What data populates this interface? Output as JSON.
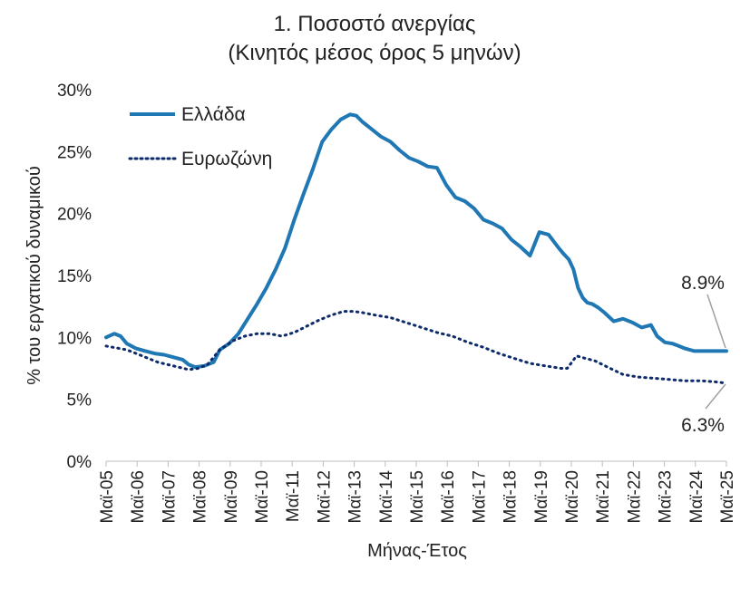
{
  "chart_data": {
    "type": "line",
    "title": [
      "1. Ποσοστό ανεργίας",
      "(Κινητός μέσος όρος 5 μηνών)"
    ],
    "xlabel": "Μήνας-Έτος",
    "ylabel": "% του εργατικού δυναμικού",
    "ylim": [
      0,
      30
    ],
    "yticks": [
      0,
      5,
      10,
      15,
      20,
      25,
      30
    ],
    "ytick_labels": [
      "0%",
      "5%",
      "10%",
      "15%",
      "20%",
      "25%",
      "30%"
    ],
    "xlim": [
      2005.333,
      2025.333
    ],
    "categories": [
      "Μαϊ-05",
      "Μαϊ-06",
      "Μαϊ-07",
      "Μαϊ-08",
      "Μαϊ-09",
      "Μαϊ-10",
      "Μαϊ-11",
      "Μαϊ-12",
      "Μαϊ-13",
      "Μαϊ-14",
      "Μαϊ-15",
      "Μαϊ-16",
      "Μαϊ-17",
      "Μαϊ-18",
      "Μαϊ-19",
      "Μαϊ-20",
      "Μαϊ-21",
      "Μαϊ-22",
      "Μαϊ-23",
      "Μαϊ-24",
      "Μαϊ-25"
    ],
    "legend": {
      "placement": "top-left"
    },
    "grid": false,
    "series": [
      {
        "name": "Ελλάδα",
        "color": "#1f77b4",
        "style": "solid",
        "x": [
          2005.333,
          2005.6,
          2005.8,
          2006.0,
          2006.3,
          2006.6,
          2006.9,
          2007.2,
          2007.5,
          2007.8,
          2008.0,
          2008.2,
          2008.5,
          2008.8,
          2009.0,
          2009.3,
          2009.6,
          2009.9,
          2010.2,
          2010.5,
          2010.8,
          2011.1,
          2011.4,
          2011.7,
          2012.0,
          2012.3,
          2012.6,
          2012.9,
          2013.2,
          2013.4,
          2013.6,
          2013.9,
          2014.2,
          2014.5,
          2014.8,
          2015.1,
          2015.4,
          2015.7,
          2016.0,
          2016.3,
          2016.6,
          2016.9,
          2017.2,
          2017.5,
          2017.8,
          2018.1,
          2018.4,
          2018.7,
          2019.0,
          2019.3,
          2019.6,
          2019.9,
          2020.1,
          2020.25,
          2020.4,
          2020.55,
          2020.7,
          2020.85,
          2021.0,
          2021.2,
          2021.4,
          2021.7,
          2022.0,
          2022.3,
          2022.6,
          2022.9,
          2023.1,
          2023.35,
          2023.6,
          2023.8,
          2024.0,
          2024.3,
          2024.6,
          2024.9,
          2025.1,
          2025.333
        ],
        "y": [
          10.0,
          10.3,
          10.1,
          9.5,
          9.1,
          8.9,
          8.7,
          8.6,
          8.4,
          8.2,
          7.8,
          7.6,
          7.7,
          8.0,
          9.0,
          9.5,
          10.3,
          11.5,
          12.7,
          14.0,
          15.5,
          17.2,
          19.5,
          21.6,
          23.6,
          25.8,
          26.8,
          27.6,
          28.0,
          27.9,
          27.4,
          26.8,
          26.2,
          25.8,
          25.1,
          24.5,
          24.2,
          23.8,
          23.7,
          22.3,
          21.3,
          21.0,
          20.4,
          19.5,
          19.2,
          18.8,
          17.9,
          17.3,
          16.6,
          18.5,
          18.3,
          17.3,
          16.7,
          16.3,
          15.5,
          14.0,
          13.2,
          12.8,
          12.7,
          12.4,
          12.0,
          11.3,
          11.5,
          11.2,
          10.8,
          11.0,
          10.1,
          9.6,
          9.5,
          9.3,
          9.1,
          8.9,
          8.9,
          8.9,
          8.9,
          8.9
        ],
        "end_label": "8.9%"
      },
      {
        "name": "Ευρωζώνη",
        "color": "#0d2a6b",
        "style": "dotted",
        "x": [
          2005.333,
          2006.0,
          2006.5,
          2007.0,
          2007.5,
          2008.0,
          2008.3,
          2008.6,
          2009.0,
          2009.4,
          2009.8,
          2010.2,
          2010.6,
          2011.0,
          2011.4,
          2011.8,
          2012.2,
          2012.6,
          2013.0,
          2013.3,
          2013.6,
          2014.0,
          2014.5,
          2015.0,
          2015.5,
          2016.0,
          2016.5,
          2017.0,
          2017.5,
          2018.0,
          2018.5,
          2019.0,
          2019.5,
          2020.0,
          2020.2,
          2020.5,
          2020.8,
          2021.1,
          2021.5,
          2022.0,
          2022.5,
          2023.0,
          2023.5,
          2024.0,
          2024.5,
          2025.0,
          2025.333
        ],
        "y": [
          9.3,
          9.0,
          8.5,
          8.0,
          7.7,
          7.4,
          7.5,
          7.8,
          9.0,
          9.7,
          10.1,
          10.3,
          10.3,
          10.1,
          10.4,
          10.9,
          11.4,
          11.8,
          12.1,
          12.1,
          12.0,
          11.8,
          11.6,
          11.2,
          10.8,
          10.4,
          10.1,
          9.6,
          9.2,
          8.7,
          8.3,
          7.9,
          7.7,
          7.5,
          7.5,
          8.5,
          8.3,
          8.1,
          7.6,
          7.0,
          6.8,
          6.7,
          6.6,
          6.5,
          6.5,
          6.4,
          6.3
        ],
        "end_label": "6.3%"
      }
    ]
  }
}
